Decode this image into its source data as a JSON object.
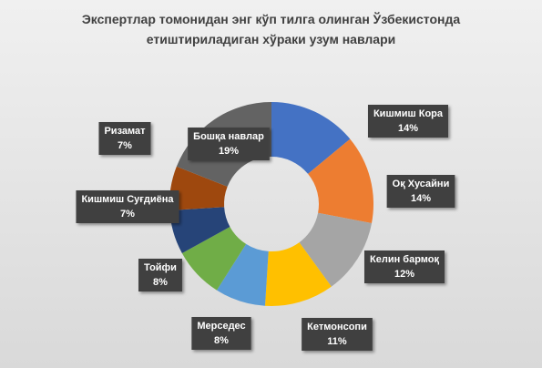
{
  "chart_data": {
    "type": "donut",
    "title": "Экспертлар томонидан энг кўп тилга олинган Ўзбекистонда етиштириладиган хўраки узум навлари",
    "categories": [
      "Кишмиш Кора",
      "Оқ Хусайни",
      "Келин бармоқ",
      "Кетмонсопи",
      "Мерседес",
      "Тойфи",
      "Кишмиш Суғдиёна",
      "Ризамат",
      "Бошқа навлар"
    ],
    "values": [
      14,
      14,
      12,
      11,
      8,
      8,
      7,
      7,
      19
    ],
    "value_labels": [
      "14%",
      "14%",
      "12%",
      "11%",
      "8%",
      "8%",
      "7%",
      "7%",
      "19%"
    ],
    "colors": [
      "#4472c4",
      "#ed7d31",
      "#a5a5a5",
      "#ffc000",
      "#5b9bd5",
      "#70ad47",
      "#264478",
      "#9e480e",
      "#636363"
    ]
  }
}
